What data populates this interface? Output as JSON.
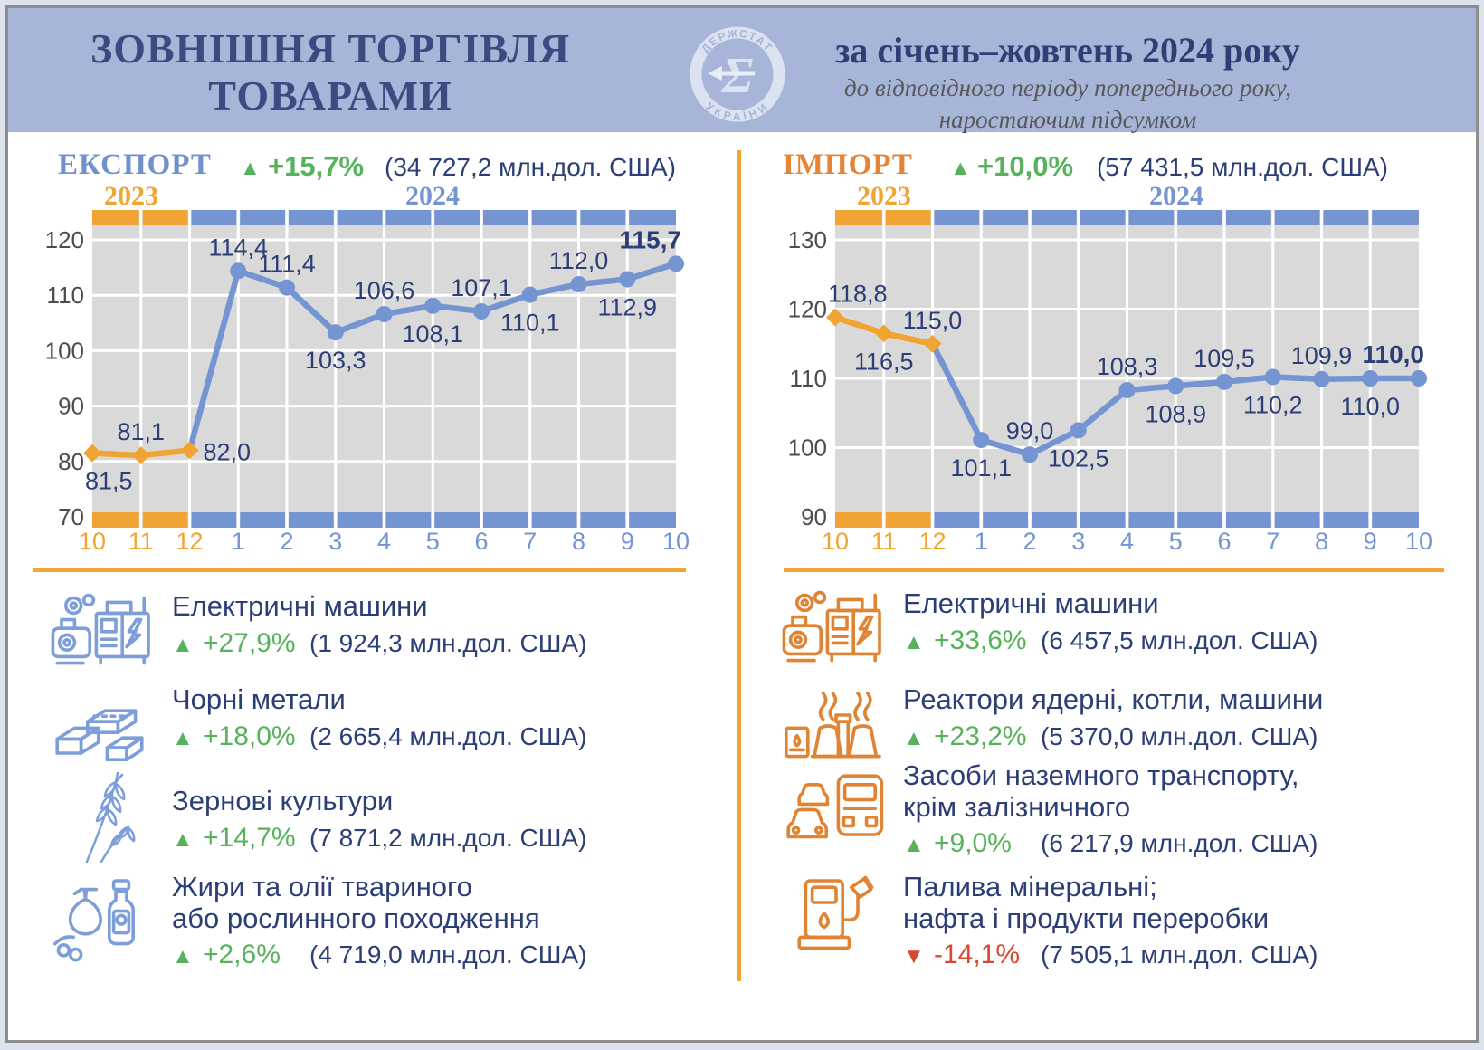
{
  "page": {
    "title_line1": "ЗОВНІШНЯ ТОРГІВЛЯ",
    "title_line2": "ТОВАРАМИ",
    "period_title": "за січень–жовтень 2024 року",
    "period_note1": "до відповідного періоду попереднього року,",
    "period_note2": "наростаючим підсумком",
    "logo_top": "ДЕРЖСТАТ",
    "logo_bottom": "УКРАЇНИ",
    "logo_glyph": "Σ"
  },
  "colors": {
    "header_bg": "#a6b5d8",
    "navy": "#2c3e76",
    "export_blue": "#7191cc",
    "import_orange": "#e58434",
    "year_2023_orange": "#f0a433",
    "year_2024_blue": "#7494d2",
    "green_up": "#57b35b",
    "red_down": "#d84730",
    "plot_bg": "#d9d9d9",
    "grid": "#ffffff",
    "tick_text": "#4c4c4c"
  },
  "export_section": {
    "label": "ЕКСПОРТ",
    "trend_glyph": "▲",
    "direction": "up",
    "change": "+15,7%",
    "total": "(34 727,2  млн.дол. США)",
    "year_2023": "2023",
    "year_2024": "2024",
    "items": [
      {
        "icon": "electric-machines",
        "title1": "Електричні машини",
        "title2": "",
        "glyph": "▲",
        "direction": "up",
        "change": "+27,9%",
        "value": "(1 924,3 млн.дол. США)"
      },
      {
        "icon": "ferrous-metals",
        "title1": "Чорні метали",
        "title2": "",
        "glyph": "▲",
        "direction": "up",
        "change": "+18,0%",
        "value": "(2 665,4 млн.дол. США)"
      },
      {
        "icon": "cereals",
        "title1": "Зернові культури",
        "title2": "",
        "glyph": "▲",
        "direction": "up",
        "change": "+14,7%",
        "value": "(7 871,2 млн.дол. США)"
      },
      {
        "icon": "fats-oils",
        "title1": "Жири та олії твариного",
        "title2": "або рослинного походження",
        "glyph": "▲",
        "direction": "up",
        "change": "+2,6%",
        "value": "(4 719,0 млн.дол. США)"
      }
    ]
  },
  "import_section": {
    "label": "ІМПОРТ",
    "trend_glyph": "▲",
    "direction": "up",
    "change": "+10,0%",
    "total": "(57 431,5  млн.дол. США)",
    "year_2023": "2023",
    "year_2024": "2024",
    "items": [
      {
        "icon": "electric-machines",
        "title1": "Електричні машини",
        "title2": "",
        "glyph": "▲",
        "direction": "up",
        "change": "+33,6%",
        "value": "(6 457,5 млн.дол. США)"
      },
      {
        "icon": "nuclear-reactors",
        "title1": "Реактори ядерні, котли, машини",
        "title2": "",
        "glyph": "▲",
        "direction": "up",
        "change": "+23,2%",
        "value": "(5 370,0 млн.дол. США)"
      },
      {
        "icon": "land-vehicles",
        "title1": "Засоби наземного транспорту,",
        "title2": "крім залізничного",
        "glyph": "▲",
        "direction": "up",
        "change": "+9,0%",
        "value": "(6 217,9 млн.дол. США)"
      },
      {
        "icon": "mineral-fuels",
        "title1": "Палива мінеральні;",
        "title2": "нафта і продукти переробки",
        "glyph": "▼",
        "direction": "down",
        "change": "-14,1%",
        "value": "(7 505,1 млн.дол. США)"
      }
    ]
  },
  "chart_data": [
    {
      "type": "line",
      "title": "ЕКСПОРТ",
      "change": "+15,7%",
      "total_mln_usd": "34 727,2",
      "categories": [
        "10",
        "11",
        "12",
        "1",
        "2",
        "3",
        "4",
        "5",
        "6",
        "7",
        "8",
        "9",
        "10"
      ],
      "orange_point_count": 3,
      "orange_interval_count": 2,
      "series": [
        {
          "name": "2023",
          "marker": "diamond",
          "values": [
            81.5,
            81.1,
            82.0,
            null,
            null,
            null,
            null,
            null,
            null,
            null,
            null,
            null,
            null
          ]
        },
        {
          "name": "2024",
          "marker": "circle",
          "values": [
            null,
            null,
            82.0,
            114.4,
            111.4,
            103.3,
            106.6,
            108.1,
            107.1,
            110.1,
            112.0,
            112.9,
            115.7
          ]
        }
      ],
      "point_labels": [
        "81,5",
        "81,1",
        "82,0",
        "114,4",
        "111,4",
        "103,3",
        "106,6",
        "108,1",
        "107,1",
        "110,1",
        "112,0",
        "112,9",
        "115,7"
      ],
      "label_pos": [
        "below-start",
        "above",
        "right",
        "above",
        "above",
        "below",
        "above",
        "below",
        "above",
        "below",
        "above",
        "below",
        "above-end"
      ],
      "last_label_bold": true,
      "ylim": [
        70,
        120
      ],
      "yticks": [
        70,
        80,
        90,
        100,
        110,
        120
      ],
      "grid": true,
      "legend": "none"
    },
    {
      "type": "line",
      "title": "ІМПОРТ",
      "change": "+10,0%",
      "total_mln_usd": "57 431,5",
      "categories": [
        "10",
        "11",
        "12",
        "1",
        "2",
        "3",
        "4",
        "5",
        "6",
        "7",
        "8",
        "9",
        "10"
      ],
      "orange_point_count": 3,
      "orange_interval_count": 2,
      "series": [
        {
          "name": "2023",
          "marker": "diamond",
          "values": [
            118.8,
            116.5,
            115.0,
            null,
            null,
            null,
            null,
            null,
            null,
            null,
            null,
            null,
            null
          ]
        },
        {
          "name": "2024",
          "marker": "circle",
          "values": [
            null,
            null,
            115.0,
            101.1,
            99.0,
            102.5,
            108.3,
            108.9,
            109.5,
            110.2,
            109.9,
            110.0,
            110.0
          ]
        }
      ],
      "point_labels": [
        "118,8",
        "116,5",
        "115,0",
        "101,1",
        "99,0",
        "102,5",
        "108,3",
        "108,9",
        "109,5",
        "110,2",
        "109,9",
        "110,0",
        "110,0"
      ],
      "label_pos": [
        "above-start",
        "below",
        "above",
        "below",
        "above",
        "below",
        "above",
        "below",
        "above",
        "below",
        "above",
        "below",
        "above-end"
      ],
      "last_label_bold": true,
      "ylim": [
        90,
        130
      ],
      "yticks": [
        90,
        100,
        110,
        120,
        130
      ],
      "grid": true,
      "legend": "none"
    }
  ]
}
